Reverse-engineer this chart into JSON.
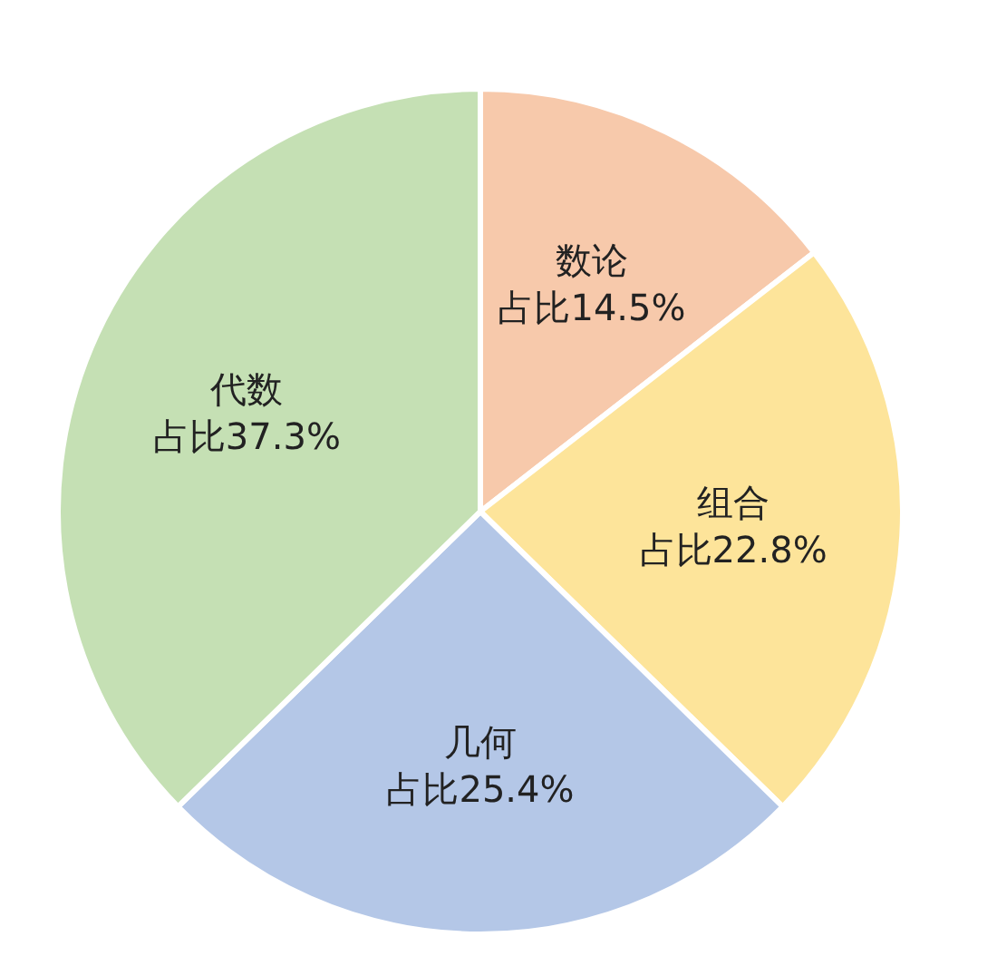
{
  "chart_data": {
    "type": "pie",
    "categories": [
      "数论",
      "组合",
      "几何",
      "代数"
    ],
    "values": [
      14.5,
      22.8,
      25.4,
      37.3
    ],
    "colors": [
      "#f7c9ab",
      "#fde49a",
      "#b4c7e7",
      "#c5e0b4"
    ],
    "value_labels": [
      "占比14.5%",
      "占比22.8%",
      "占比25.4%",
      "占比37.3%"
    ]
  }
}
